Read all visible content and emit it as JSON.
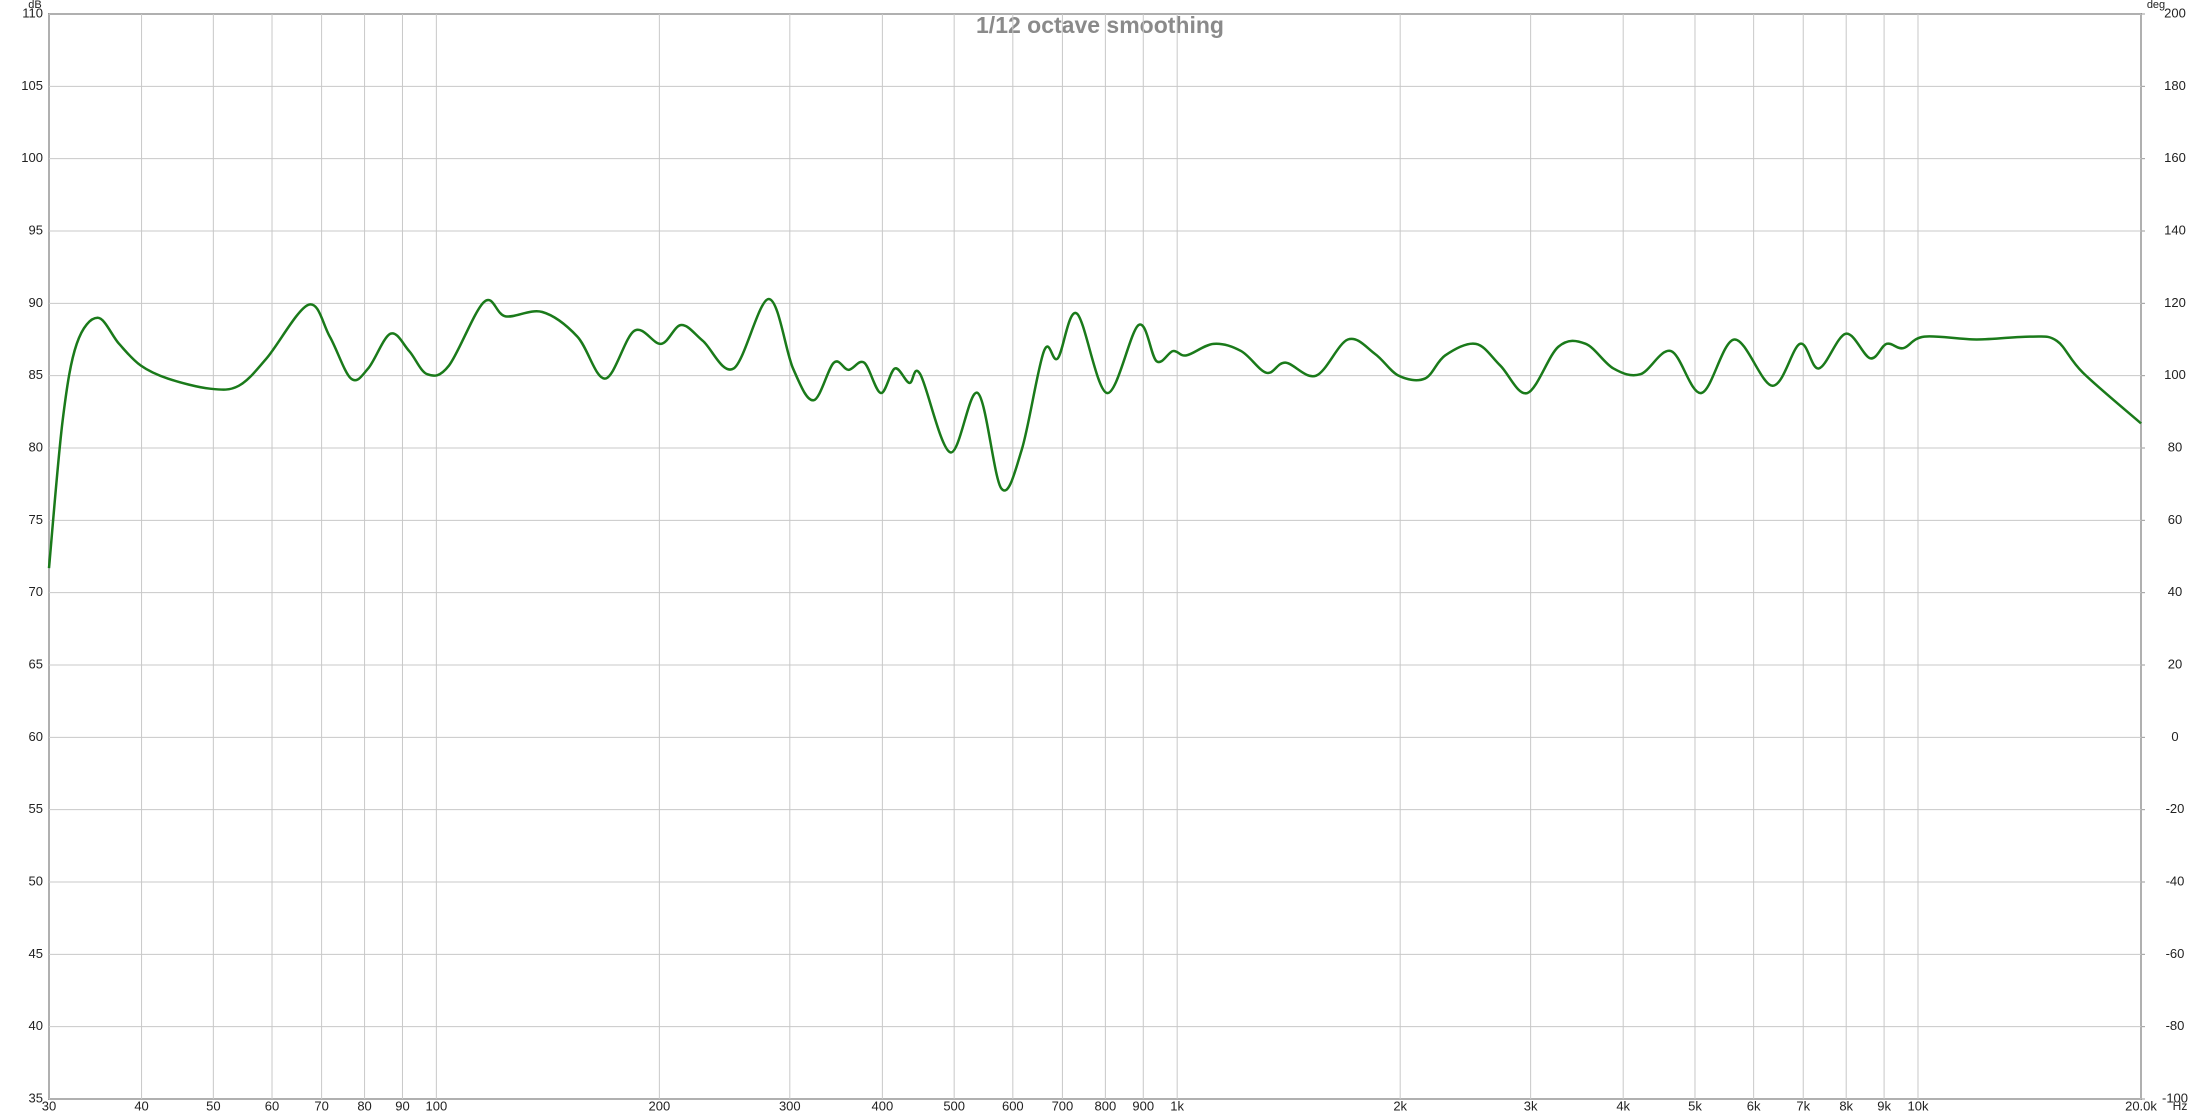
{
  "chart_data": {
    "type": "line",
    "title": "1/12 octave smoothing",
    "y_label": "dB",
    "y2_label": "deg",
    "x_label": "Hz",
    "log_x": true,
    "grid": true,
    "color": "#1a7a1a",
    "x": [
      30,
      31.3,
      32.7,
      34.9,
      37.3,
      39.9,
      43.4,
      49.5,
      54.1,
      59,
      67.2,
      71.8,
      76.7,
      80.9,
      86.7,
      91.9,
      97.2,
      104,
      116,
      124,
      139,
      155,
      169,
      185,
      201,
      214,
      229,
      252,
      281,
      303,
      323,
      344,
      360,
      378,
      398,
      416,
      435,
      450,
      494,
      538,
      579,
      617,
      661,
      690,
      732,
      804,
      887,
      938,
      987,
      1029,
      1120,
      1220,
      1320,
      1400,
      1540,
      1700,
      1850,
      1990,
      2160,
      2300,
      2530,
      2730,
      2970,
      3270,
      3560,
      3880,
      4220,
      4640,
      5100,
      5650,
      6360,
      6930,
      7350,
      7990,
      8620,
      9070,
      9550,
      10200,
      12000,
      14200,
      15400,
      16700,
      20000
    ],
    "values": [
      71.7,
      81.9,
      87.2,
      89.0,
      87.2,
      85.7,
      84.8,
      84.1,
      84.3,
      86.2,
      89.9,
      87.7,
      84.8,
      85.5,
      87.9,
      86.7,
      85.1,
      85.7,
      90.1,
      89.1,
      89.4,
      87.7,
      84.8,
      88.1,
      87.2,
      88.5,
      87.4,
      85.5,
      90.3,
      85.5,
      83.3,
      85.9,
      85.4,
      85.9,
      83.8,
      85.5,
      84.5,
      85.1,
      79.7,
      83.8,
      77.2,
      79.9,
      86.7,
      86.2,
      89.3,
      83.8,
      88.5,
      86.0,
      86.7,
      86.4,
      87.2,
      86.7,
      85.2,
      85.9,
      85.0,
      87.5,
      86.5,
      85.0,
      84.8,
      86.4,
      87.2,
      85.7,
      83.8,
      87.0,
      87.2,
      85.5,
      85.1,
      86.7,
      83.8,
      87.5,
      84.3,
      87.2,
      85.5,
      87.9,
      86.2,
      87.2,
      86.9,
      87.7,
      87.5,
      87.7,
      87.4,
      85.2,
      81.7
    ],
    "xlim": [
      30,
      20000
    ],
    "xticks": [
      30,
      40,
      50,
      60,
      70,
      80,
      90,
      100,
      200,
      300,
      400,
      500,
      600,
      700,
      800,
      900,
      {
        "value": 1000,
        "label": "1k"
      },
      {
        "value": 2000,
        "label": "2k"
      },
      {
        "value": 3000,
        "label": "3k"
      },
      {
        "value": 4000,
        "label": "4k"
      },
      {
        "value": 5000,
        "label": "5k"
      },
      {
        "value": 6000,
        "label": "6k"
      },
      {
        "value": 7000,
        "label": "7k"
      },
      {
        "value": 8000,
        "label": "8k"
      },
      {
        "value": 9000,
        "label": "9k"
      },
      {
        "value": 10000,
        "label": "10k"
      },
      {
        "value": 20000,
        "label": "20.0k"
      }
    ],
    "ylim": [
      35,
      110
    ],
    "yticks": [
      35,
      40,
      45,
      50,
      55,
      60,
      65,
      70,
      75,
      80,
      85,
      90,
      95,
      100,
      105,
      110
    ],
    "y2lim": [
      -100,
      200
    ],
    "y2ticks": [
      -100,
      -80,
      -60,
      -40,
      -20,
      0,
      20,
      40,
      60,
      80,
      100,
      120,
      140,
      160,
      180,
      200
    ]
  }
}
